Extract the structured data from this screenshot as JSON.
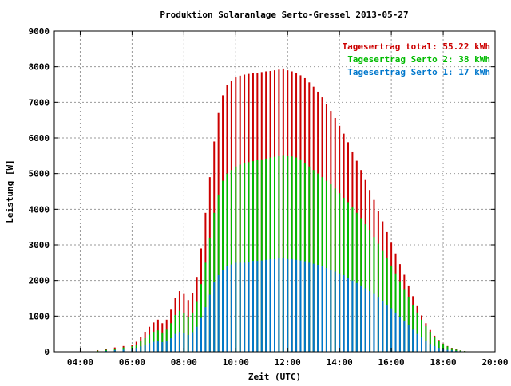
{
  "chart_data": {
    "type": "bar",
    "title": "Produktion Solaranlage Serto-Gressel 2013-05-27",
    "xlabel": "Zeit (UTC)",
    "ylabel": "Leistung [W]",
    "xlim": [
      "03:00",
      "20:00"
    ],
    "ylim": [
      0,
      9000
    ],
    "x_ticks": [
      "04:00",
      "06:00",
      "08:00",
      "10:00",
      "12:00",
      "14:00",
      "16:00",
      "18:00",
      "20:00"
    ],
    "y_ticks": [
      "0",
      "1000",
      "2000",
      "3000",
      "4000",
      "5000",
      "6000",
      "7000",
      "8000",
      "9000"
    ],
    "grid": true,
    "legend_position": "top-right",
    "legend": [
      {
        "label": "Tagesertrag total: 55.22 kWh",
        "color": "#cc0000"
      },
      {
        "label": "Tagesertrag Serto 2: 38 kWh",
        "color": "#00bb00"
      },
      {
        "label": "Tagesertrag Serto 1: 17 kWh",
        "color": "#0077cc"
      }
    ],
    "x": [
      "04:40",
      "05:00",
      "05:20",
      "05:40",
      "06:00",
      "06:10",
      "06:20",
      "06:30",
      "06:40",
      "06:50",
      "07:00",
      "07:10",
      "07:20",
      "07:30",
      "07:40",
      "07:50",
      "08:00",
      "08:10",
      "08:20",
      "08:30",
      "08:40",
      "08:50",
      "09:00",
      "09:10",
      "09:20",
      "09:30",
      "09:40",
      "09:50",
      "10:00",
      "10:10",
      "10:20",
      "10:30",
      "10:40",
      "10:50",
      "11:00",
      "11:10",
      "11:20",
      "11:30",
      "11:40",
      "11:50",
      "12:00",
      "12:10",
      "12:20",
      "12:30",
      "12:40",
      "12:50",
      "13:00",
      "13:10",
      "13:20",
      "13:30",
      "13:40",
      "13:50",
      "14:00",
      "14:10",
      "14:20",
      "14:30",
      "14:40",
      "14:50",
      "15:00",
      "15:10",
      "15:20",
      "15:30",
      "15:40",
      "15:50",
      "16:00",
      "16:10",
      "16:20",
      "16:30",
      "16:40",
      "16:50",
      "17:00",
      "17:10",
      "17:20",
      "17:30",
      "17:40",
      "17:50",
      "18:00",
      "18:10",
      "18:20",
      "18:30",
      "18:40",
      "18:50",
      "19:00"
    ],
    "series": [
      {
        "name": "Tagesertrag Serto 1: 17 kWh",
        "color": "#0077cc",
        "values": [
          10,
          25,
          45,
          60,
          80,
          110,
          150,
          190,
          240,
          280,
          290,
          270,
          300,
          380,
          500,
          560,
          520,
          470,
          550,
          700,
          950,
          1250,
          1600,
          1950,
          2150,
          2300,
          2400,
          2450,
          2500,
          2500,
          2500,
          2520,
          2550,
          2550,
          2560,
          2580,
          2600,
          2600,
          2620,
          2620,
          2600,
          2600,
          2580,
          2560,
          2540,
          2500,
          2470,
          2440,
          2400,
          2350,
          2300,
          2250,
          2200,
          2150,
          2080,
          2000,
          1930,
          1860,
          1780,
          1700,
          1620,
          1520,
          1420,
          1320,
          1220,
          1100,
          980,
          860,
          740,
          620,
          500,
          400,
          300,
          220,
          160,
          110,
          80,
          55,
          40,
          25,
          15,
          10,
          5
        ]
      },
      {
        "name": "Tagesertrag Serto 2: 38 kWh",
        "color": "#00bb00",
        "values": [
          30,
          55,
          90,
          120,
          150,
          200,
          300,
          380,
          480,
          560,
          600,
          540,
          620,
          800,
          1030,
          1150,
          1080,
          980,
          1100,
          1400,
          1900,
          2500,
          3200,
          3900,
          4400,
          4800,
          5000,
          5100,
          5200,
          5250,
          5300,
          5320,
          5350,
          5380,
          5400,
          5420,
          5450,
          5470,
          5500,
          5520,
          5500,
          5480,
          5450,
          5400,
          5300,
          5200,
          5100,
          5000,
          4900,
          4800,
          4700,
          4580,
          4450,
          4320,
          4200,
          4050,
          3900,
          3750,
          3580,
          3400,
          3220,
          3030,
          2830,
          2630,
          2420,
          2200,
          1980,
          1760,
          1540,
          1320,
          1100,
          900,
          720,
          560,
          420,
          310,
          220,
          150,
          100,
          60,
          35,
          20,
          10
        ]
      },
      {
        "name": "Tagesertrag total: 55.22 kWh",
        "color": "#cc0000",
        "values": [
          45,
          80,
          120,
          160,
          200,
          280,
          420,
          560,
          700,
          820,
          900,
          800,
          900,
          1180,
          1500,
          1700,
          1620,
          1450,
          1640,
          2100,
          2900,
          3900,
          4900,
          5900,
          6700,
          7200,
          7500,
          7600,
          7700,
          7750,
          7780,
          7800,
          7820,
          7830,
          7850,
          7870,
          7880,
          7900,
          7920,
          7950,
          7900,
          7870,
          7820,
          7760,
          7680,
          7560,
          7440,
          7300,
          7140,
          6960,
          6760,
          6560,
          6340,
          6120,
          5880,
          5620,
          5360,
          5100,
          4820,
          4540,
          4260,
          3960,
          3660,
          3360,
          3060,
          2760,
          2460,
          2160,
          1860,
          1560,
          1280,
          1020,
          800,
          610,
          450,
          330,
          230,
          160,
          110,
          70,
          40,
          20,
          10
        ]
      }
    ]
  }
}
